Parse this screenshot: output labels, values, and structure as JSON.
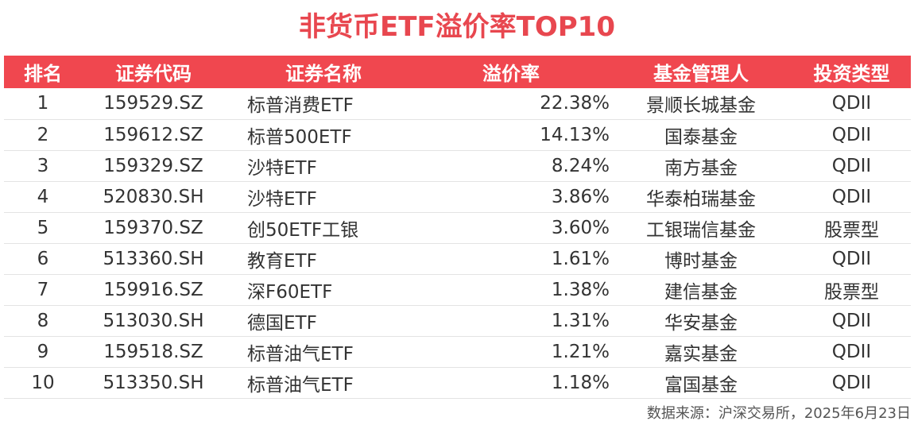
{
  "chart_data": {
    "type": "table",
    "title": "非货币ETF溢价率TOP10",
    "columns": [
      "排名",
      "证券代码",
      "证券名称",
      "溢价率",
      "基金管理人",
      "投资类型"
    ],
    "rows": [
      [
        "1",
        "159529.SZ",
        "标普消费ETF",
        "22.38%",
        "景顺长城基金",
        "QDII"
      ],
      [
        "2",
        "159612.SZ",
        "标普500ETF",
        "14.13%",
        "国泰基金",
        "QDII"
      ],
      [
        "3",
        "159329.SZ",
        "沙特ETF",
        "8.24%",
        "南方基金",
        "QDII"
      ],
      [
        "4",
        "520830.SH",
        "沙特ETF",
        "3.86%",
        "华泰柏瑞基金",
        "QDII"
      ],
      [
        "5",
        "159370.SZ",
        "创50ETF工银",
        "3.60%",
        "工银瑞信基金",
        "股票型"
      ],
      [
        "6",
        "513360.SH",
        "教育ETF",
        "1.61%",
        "博时基金",
        "QDII"
      ],
      [
        "7",
        "159916.SZ",
        "深F60ETF",
        "1.38%",
        "建信基金",
        "股票型"
      ],
      [
        "8",
        "513030.SH",
        "德国ETF",
        "1.31%",
        "华安基金",
        "QDII"
      ],
      [
        "9",
        "159518.SZ",
        "标普油气ETF",
        "1.21%",
        "嘉实基金",
        "QDII"
      ],
      [
        "10",
        "513350.SH",
        "标普油气ETF",
        "1.18%",
        "富国基金",
        "QDII"
      ]
    ],
    "source": "数据来源：沪深交易所，2025年6月23日"
  },
  "colors": {
    "title": "#e8474f",
    "header_bg": "#f0474f",
    "header_text": "#ffffff",
    "body_text": "#333333",
    "row_divider": "#e3e3e3"
  }
}
